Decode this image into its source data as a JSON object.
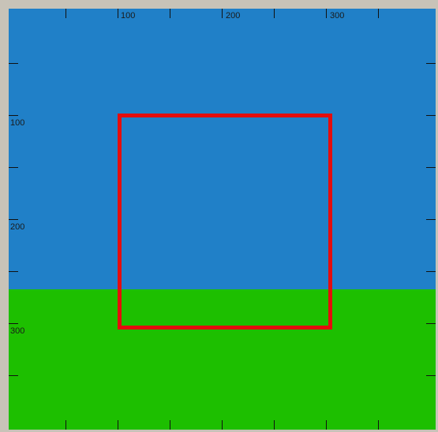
{
  "colors": {
    "sky": "#2080c8",
    "ground": "#1dbf00",
    "rectangle": "#e40d0d",
    "frame": "#c8c3b8"
  },
  "ruler": {
    "x_labels": [
      "100",
      "200",
      "300"
    ],
    "y_labels": [
      "100",
      "200",
      "300"
    ]
  }
}
